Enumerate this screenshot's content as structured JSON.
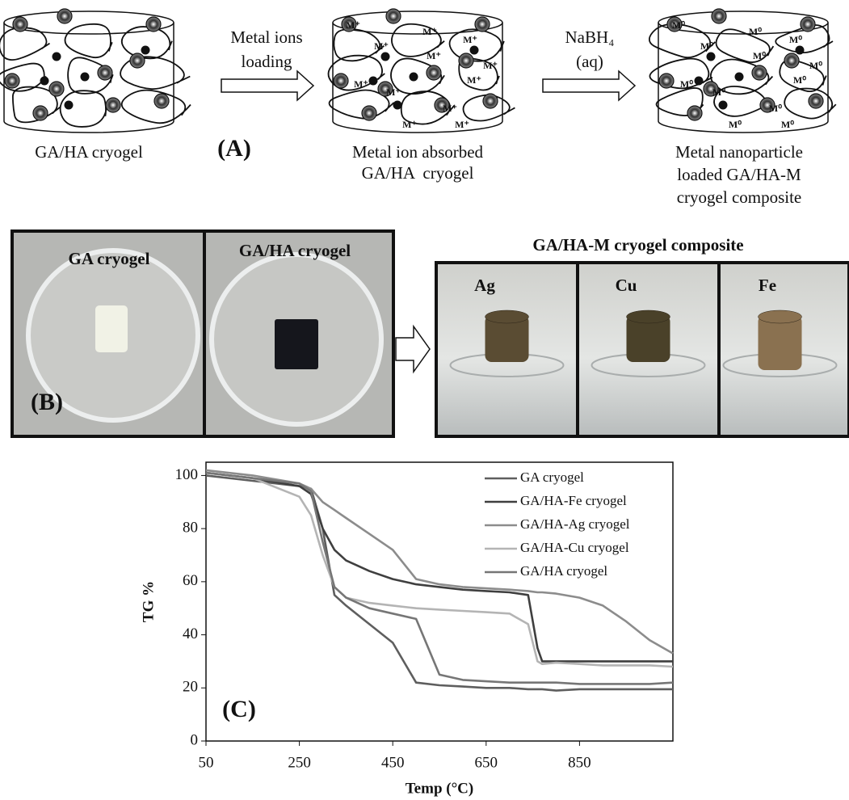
{
  "panel_a": {
    "label": "(A)",
    "stages": [
      {
        "caption": [
          "GA/HA cryogel"
        ]
      },
      {
        "caption": [
          "Metal ion absorbed",
          "GA/HA  cryogel"
        ]
      },
      {
        "caption": [
          "Metal nanoparticle",
          "loaded GA/HA-M",
          "cryogel composite"
        ]
      }
    ],
    "arrows": [
      {
        "text": [
          "Metal ions",
          "loading"
        ]
      },
      {
        "text": [
          "NaBH₄",
          "(aq)"
        ]
      }
    ],
    "ion_label": "M⁺",
    "particle_label": "M⁰"
  },
  "panel_b": {
    "label": "(B)",
    "photos": [
      "GA cryogel",
      "GA/HA cryogel"
    ],
    "composite_title": "GA/HA-M cryogel composite",
    "metals": [
      "Ag",
      "Cu",
      "Fe"
    ]
  },
  "chart_data": {
    "type": "line",
    "annotation": "(C)",
    "x_label": "Temp (°C)",
    "y_label": "TG %",
    "xlim": [
      50,
      1050
    ],
    "ylim": [
      0,
      105
    ],
    "xticks": [
      50,
      250,
      450,
      650,
      850
    ],
    "yticks": [
      0,
      20,
      40,
      60,
      80,
      100
    ],
    "legend": "upper right",
    "x": [
      50,
      150,
      250,
      275,
      300,
      325,
      350,
      400,
      450,
      500,
      550,
      600,
      650,
      700,
      740,
      760,
      770,
      800,
      850,
      900,
      950,
      1000,
      1050
    ],
    "series": [
      {
        "name": "GA cryogel",
        "color": "#5e5e5e",
        "values": [
          100,
          98,
          96,
          95,
          80,
          55,
          51,
          44,
          37,
          22,
          21,
          20.5,
          20,
          20,
          19.5,
          19.5,
          19.5,
          19,
          19.5,
          19.5,
          19.5,
          19.5,
          19.5
        ]
      },
      {
        "name": "GA/HA-Fe cryogel",
        "color": "#3f3f3f",
        "values": [
          101,
          99,
          96,
          93,
          80,
          72,
          68,
          64,
          61,
          59,
          58,
          57,
          56.5,
          56,
          55,
          35,
          30,
          30,
          30,
          30,
          30,
          30,
          30
        ]
      },
      {
        "name": "GA/HA-Ag cryogel",
        "color": "#8c8c8c",
        "values": [
          102,
          100,
          97,
          95,
          90,
          87,
          84,
          78,
          72,
          61,
          59,
          58,
          57.5,
          57,
          56.5,
          56,
          56,
          55.5,
          54,
          51,
          45,
          38,
          33
        ]
      },
      {
        "name": "GA/HA-Cu cryogel",
        "color": "#b4b4b4",
        "values": [
          101,
          99,
          92,
          85,
          70,
          58,
          54,
          52,
          51,
          50,
          49.5,
          49,
          48.5,
          48,
          44,
          30,
          29,
          29.5,
          29,
          28.5,
          28.5,
          28.5,
          28
        ]
      },
      {
        "name": "GA/HA cryogel",
        "color": "#767676",
        "values": [
          101,
          99,
          97,
          94,
          75,
          58,
          54,
          50,
          48,
          46,
          25,
          23,
          22.5,
          22,
          22,
          22,
          22,
          22,
          21.5,
          21.5,
          21.5,
          21.5,
          22
        ]
      }
    ]
  }
}
